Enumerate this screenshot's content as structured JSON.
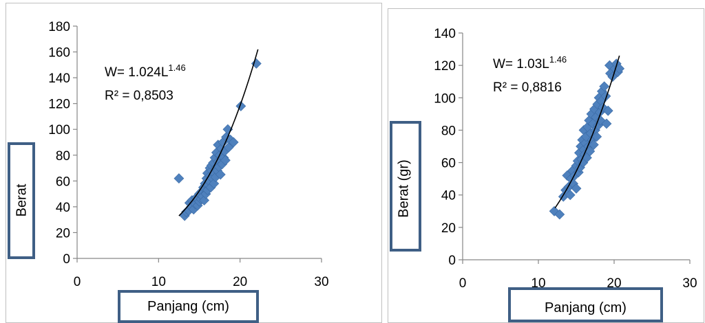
{
  "colors": {
    "marker": "#4f81bd",
    "trendline": "#000000",
    "label_box_border": "#3f5f85",
    "axis": "#868686"
  },
  "chart_data": [
    {
      "type": "scatter",
      "title": "",
      "xlabel": "Panjang (cm)",
      "ylabel": "Berat",
      "xlim": [
        0,
        30
      ],
      "ylim": [
        0,
        180
      ],
      "xticks": [
        "0",
        "10",
        "20",
        "30"
      ],
      "yticks": [
        "0",
        "20",
        "40",
        "60",
        "80",
        "100",
        "120",
        "140",
        "160",
        "180"
      ],
      "grid": false,
      "legend": "none",
      "equation": {
        "prefix": "W= 1.024L",
        "exponent": "1.46",
        "r2": "R² = 0,8503"
      },
      "fit": {
        "a": 1.024,
        "b": 1.46,
        "x_range": [
          12.5,
          22.2
        ],
        "note_curve_only": true
      },
      "points": [
        [
          12.5,
          62
        ],
        [
          13.2,
          33
        ],
        [
          13.4,
          36
        ],
        [
          13.7,
          37
        ],
        [
          13.8,
          43
        ],
        [
          14.0,
          40
        ],
        [
          14.1,
          45
        ],
        [
          14.3,
          38
        ],
        [
          14.5,
          42
        ],
        [
          14.6,
          47
        ],
        [
          14.8,
          41
        ],
        [
          15.0,
          44
        ],
        [
          15.0,
          50
        ],
        [
          15.2,
          46
        ],
        [
          15.3,
          52
        ],
        [
          15.4,
          48
        ],
        [
          15.5,
          55
        ],
        [
          15.6,
          45
        ],
        [
          15.7,
          58
        ],
        [
          15.8,
          50
        ],
        [
          15.9,
          62
        ],
        [
          16.0,
          53
        ],
        [
          16.0,
          66
        ],
        [
          16.1,
          57
        ],
        [
          16.2,
          60
        ],
        [
          16.3,
          64
        ],
        [
          16.3,
          70
        ],
        [
          16.4,
          55
        ],
        [
          16.5,
          68
        ],
        [
          16.5,
          72
        ],
        [
          16.6,
          62
        ],
        [
          16.7,
          74
        ],
        [
          16.8,
          58
        ],
        [
          16.8,
          66
        ],
        [
          16.9,
          78
        ],
        [
          17.0,
          70
        ],
        [
          17.0,
          63
        ],
        [
          17.1,
          82
        ],
        [
          17.2,
          68
        ],
        [
          17.3,
          75
        ],
        [
          17.3,
          88
        ],
        [
          17.4,
          71
        ],
        [
          17.5,
          80
        ],
        [
          17.6,
          65
        ],
        [
          17.7,
          85
        ],
        [
          17.8,
          73
        ],
        [
          17.9,
          90
        ],
        [
          18.0,
          78
        ],
        [
          18.1,
          83
        ],
        [
          18.2,
          76
        ],
        [
          18.3,
          94
        ],
        [
          18.5,
          100
        ],
        [
          18.6,
          86
        ],
        [
          18.8,
          92
        ],
        [
          19.2,
          90
        ],
        [
          20.1,
          118
        ],
        [
          22.0,
          151
        ]
      ]
    },
    {
      "type": "scatter",
      "title": "",
      "xlabel": "Panjang (cm)",
      "ylabel": "Berat (gr)",
      "xlim": [
        0,
        30
      ],
      "ylim": [
        0,
        140
      ],
      "xticks": [
        "0",
        "10",
        "20",
        "30"
      ],
      "yticks": [
        "0",
        "20",
        "40",
        "60",
        "80",
        "100",
        "120",
        "140"
      ],
      "grid": false,
      "legend": "none",
      "equation": {
        "prefix": "W= 1.03L",
        "exponent": "1.46",
        "r2": "R² = 0,8816"
      },
      "fit": {
        "a": 1.03,
        "b": 1.46,
        "x_range": [
          12.2,
          20.7
        ],
        "note_curve_only": true
      },
      "points": [
        [
          12.1,
          30
        ],
        [
          12.8,
          28
        ],
        [
          13.3,
          39
        ],
        [
          13.6,
          43
        ],
        [
          13.8,
          52
        ],
        [
          14.0,
          45
        ],
        [
          14.2,
          40
        ],
        [
          14.3,
          50
        ],
        [
          14.5,
          55
        ],
        [
          14.6,
          47
        ],
        [
          14.8,
          52
        ],
        [
          15.0,
          58
        ],
        [
          15.0,
          44
        ],
        [
          15.2,
          61
        ],
        [
          15.3,
          54
        ],
        [
          15.4,
          66
        ],
        [
          15.5,
          57
        ],
        [
          15.6,
          70
        ],
        [
          15.7,
          62
        ],
        [
          15.8,
          74
        ],
        [
          15.9,
          60
        ],
        [
          16.0,
          68
        ],
        [
          16.0,
          80
        ],
        [
          16.1,
          65
        ],
        [
          16.2,
          72
        ],
        [
          16.3,
          76
        ],
        [
          16.4,
          63
        ],
        [
          16.5,
          82
        ],
        [
          16.6,
          70
        ],
        [
          16.7,
          86
        ],
        [
          16.8,
          67
        ],
        [
          16.9,
          78
        ],
        [
          17.0,
          90
        ],
        [
          17.1,
          74
        ],
        [
          17.2,
          84
        ],
        [
          17.3,
          71
        ],
        [
          17.4,
          93
        ],
        [
          17.5,
          80
        ],
        [
          17.6,
          88
        ],
        [
          17.7,
          76
        ],
        [
          17.8,
          96
        ],
        [
          17.9,
          83
        ],
        [
          18.0,
          100
        ],
        [
          18.1,
          91
        ],
        [
          18.2,
          86
        ],
        [
          18.3,
          98
        ],
        [
          18.4,
          104
        ],
        [
          18.5,
          94
        ],
        [
          18.7,
          107
        ],
        [
          18.9,
          101
        ],
        [
          19.0,
          84
        ],
        [
          19.2,
          92
        ],
        [
          19.4,
          120
        ],
        [
          19.5,
          115
        ],
        [
          19.8,
          113
        ],
        [
          20.1,
          118
        ],
        [
          20.3,
          121
        ],
        [
          20.5,
          116
        ],
        [
          20.7,
          118
        ]
      ]
    }
  ]
}
